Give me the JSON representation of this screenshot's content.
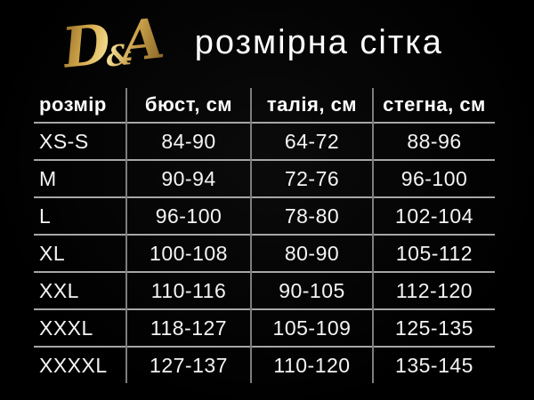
{
  "page": {
    "background_color": "#000000",
    "text_color": "#ffffff"
  },
  "header": {
    "logo": {
      "d": "D",
      "amp": "&",
      "a": "A",
      "full_text": "D&A",
      "gold_light": "#f3e096",
      "gold_mid": "#d8ad4f",
      "gold_dark": "#8a6420"
    },
    "title": "розмірна сітка"
  },
  "chart_data": {
    "type": "table",
    "title": "розмірна сітка",
    "columns": [
      "розмір",
      "бюст, см",
      "талія, см",
      "стегна, см"
    ],
    "rows": [
      [
        "XS-S",
        "84-90",
        "64-72",
        "88-96"
      ],
      [
        "M",
        "90-94",
        "72-76",
        "96-100"
      ],
      [
        "L",
        "96-100",
        "78-80",
        "102-104"
      ],
      [
        "XL",
        "100-108",
        "80-90",
        "105-112"
      ],
      [
        "XXL",
        "110-116",
        "90-105",
        "112-120"
      ],
      [
        "XXXL",
        "118-127",
        "105-109",
        "125-135"
      ],
      [
        "XXXXL",
        "127-137",
        "110-120",
        "135-145"
      ]
    ],
    "grid_color_horizontal": "#a6a6a6",
    "grid_color_vertical": "#7d7d7d",
    "layout": {
      "outer_border": false,
      "bottom_border_on_last_row": false,
      "first_column_align": "left",
      "other_columns_align": "center"
    }
  }
}
